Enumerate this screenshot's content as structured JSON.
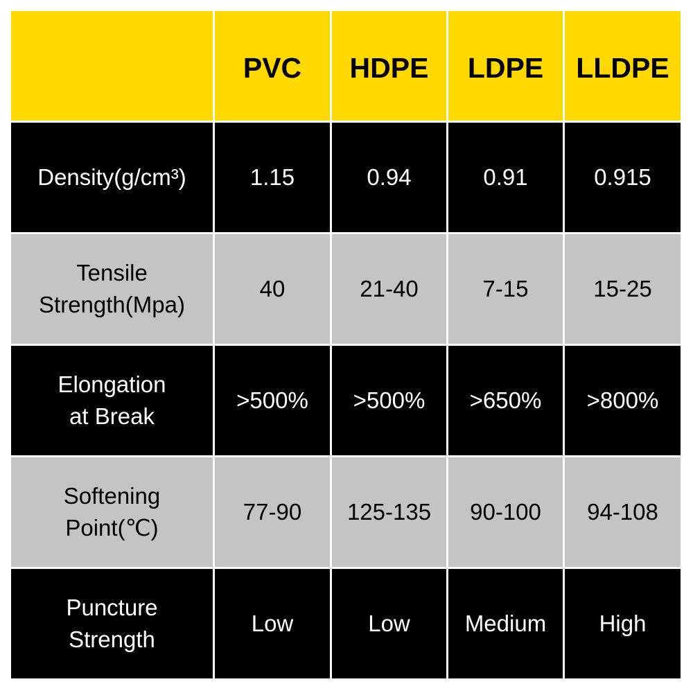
{
  "header": {
    "corner": "",
    "columns": [
      "PVC",
      "HDPE",
      "LDPE",
      "LLDPE"
    ]
  },
  "colors": {
    "header": "#ffd800",
    "dark_row": "#000000",
    "light_row": "#c4c4c4"
  },
  "rows": [
    {
      "label": "Density(g/cm³)",
      "values": [
        "1.15",
        "0.94",
        "0.91",
        "0.915"
      ]
    },
    {
      "label": "Tensile\nStrength(Mpa)",
      "values": [
        "40",
        "21-40",
        "7-15",
        "15-25"
      ]
    },
    {
      "label": "Elongation\nat Break",
      "values": [
        ">500%",
        ">500%",
        ">650%",
        ">800%"
      ]
    },
    {
      "label": "Softening\nPoint(℃)",
      "values": [
        "77-90",
        "125-135",
        "90-100",
        "94-108"
      ]
    },
    {
      "label": "Puncture\nStrength",
      "values": [
        "Low",
        "Low",
        "Medium",
        "High"
      ]
    }
  ]
}
